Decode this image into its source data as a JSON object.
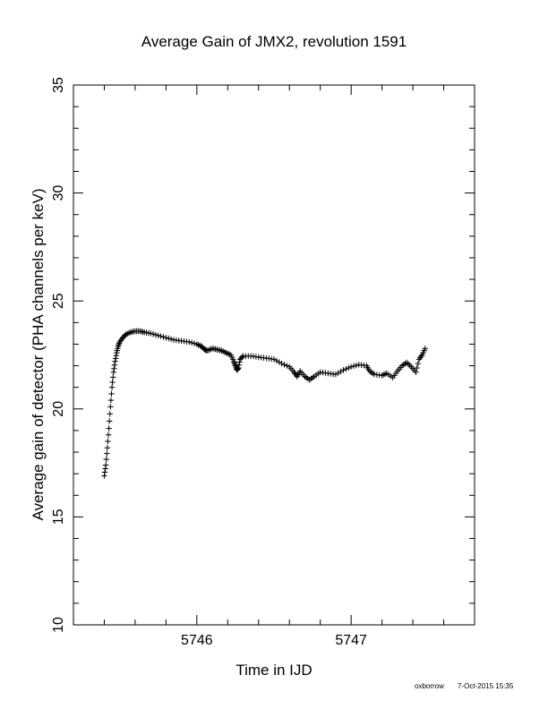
{
  "chart_data": {
    "type": "scatter",
    "title": "Average Gain of JMX2, revolution 1591",
    "xlabel": "Time in IJD",
    "ylabel": "Average gain of detector (PHA channels per keV)",
    "xlim": [
      5745.2,
      5747.8
    ],
    "ylim": [
      10,
      35
    ],
    "x_ticks": [
      5746,
      5747
    ],
    "x_tick_labels": [
      "5746",
      "5747"
    ],
    "y_ticks": [
      10,
      15,
      20,
      25,
      30,
      35
    ],
    "y_tick_labels": [
      "10",
      "15",
      "20",
      "25",
      "30",
      "35"
    ],
    "marker": "plus",
    "grid": false,
    "series": [
      {
        "points": [
          [
            5745.4,
            16.9
          ],
          [
            5745.41,
            17.4
          ],
          [
            5745.42,
            18.2
          ],
          [
            5745.43,
            19.1
          ],
          [
            5745.44,
            20.1
          ],
          [
            5745.45,
            21.0
          ],
          [
            5745.46,
            21.7
          ],
          [
            5745.47,
            22.2
          ],
          [
            5745.48,
            22.6
          ],
          [
            5745.49,
            22.9
          ],
          [
            5745.5,
            23.1
          ],
          [
            5745.52,
            23.3
          ],
          [
            5745.54,
            23.45
          ],
          [
            5745.57,
            23.55
          ],
          [
            5745.6,
            23.6
          ],
          [
            5745.63,
            23.6
          ],
          [
            5745.66,
            23.55
          ],
          [
            5745.7,
            23.5
          ],
          [
            5745.75,
            23.4
          ],
          [
            5745.8,
            23.3
          ],
          [
            5745.85,
            23.2
          ],
          [
            5745.9,
            23.15
          ],
          [
            5745.95,
            23.1
          ],
          [
            5746.0,
            23.0
          ],
          [
            5746.03,
            22.9
          ],
          [
            5746.05,
            22.75
          ],
          [
            5746.07,
            22.7
          ],
          [
            5746.1,
            22.8
          ],
          [
            5746.13,
            22.75
          ],
          [
            5746.16,
            22.7
          ],
          [
            5746.19,
            22.6
          ],
          [
            5746.22,
            22.5
          ],
          [
            5746.24,
            22.2
          ],
          [
            5746.25,
            22.0
          ],
          [
            5746.26,
            21.8
          ],
          [
            5746.27,
            21.9
          ],
          [
            5746.28,
            22.3
          ],
          [
            5746.3,
            22.45
          ],
          [
            5746.35,
            22.45
          ],
          [
            5746.4,
            22.4
          ],
          [
            5746.45,
            22.35
          ],
          [
            5746.5,
            22.3
          ],
          [
            5746.55,
            22.1
          ],
          [
            5746.6,
            21.95
          ],
          [
            5746.63,
            21.7
          ],
          [
            5746.65,
            21.5
          ],
          [
            5746.67,
            21.75
          ],
          [
            5746.7,
            21.5
          ],
          [
            5746.73,
            21.35
          ],
          [
            5746.76,
            21.5
          ],
          [
            5746.8,
            21.7
          ],
          [
            5746.85,
            21.65
          ],
          [
            5746.9,
            21.6
          ],
          [
            5746.95,
            21.8
          ],
          [
            5747.0,
            21.95
          ],
          [
            5747.05,
            22.05
          ],
          [
            5747.1,
            22.0
          ],
          [
            5747.12,
            21.75
          ],
          [
            5747.15,
            21.6
          ],
          [
            5747.2,
            21.55
          ],
          [
            5747.23,
            21.65
          ],
          [
            5747.27,
            21.45
          ],
          [
            5747.3,
            21.75
          ],
          [
            5747.33,
            22.0
          ],
          [
            5747.36,
            22.15
          ],
          [
            5747.39,
            21.95
          ],
          [
            5747.42,
            21.7
          ],
          [
            5747.44,
            22.3
          ],
          [
            5747.46,
            22.5
          ],
          [
            5747.48,
            22.8
          ]
        ]
      }
    ]
  },
  "footer": {
    "author": "oxborrow",
    "timestamp": "7-Oct-2015 15:35"
  }
}
